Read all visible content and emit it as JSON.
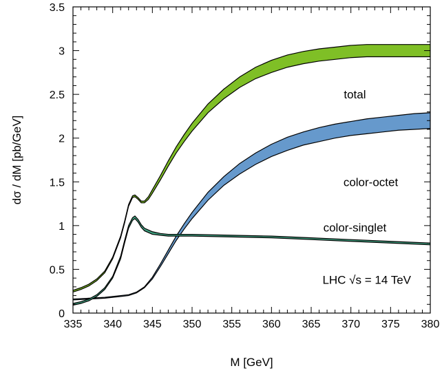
{
  "chart_data": {
    "type": "area",
    "xlabel": "M [GeV]",
    "ylabel": "dσ / dM [pb/GeV]",
    "xlim": [
      335,
      380
    ],
    "ylim": [
      0,
      3.5
    ],
    "xticks": [
      335,
      340,
      345,
      350,
      355,
      360,
      365,
      370,
      375,
      380
    ],
    "yticks": [
      0,
      0.5,
      1,
      1.5,
      2,
      2.5,
      3,
      3.5
    ],
    "ytick_labels": [
      "0",
      "0.5",
      "1",
      "1.5",
      "2",
      "2.5",
      "3",
      "3.5"
    ],
    "grid": false,
    "series": [
      {
        "name": "total",
        "color": "#7fbf26",
        "x": [
          335,
          336,
          337,
          338,
          339,
          340,
          341,
          341.5,
          342,
          342.5,
          342.8,
          343.2,
          343.6,
          344,
          344.5,
          345,
          346,
          347,
          348,
          349,
          350,
          352,
          354,
          356,
          358,
          360,
          362,
          364,
          366,
          368,
          370,
          372,
          374,
          376,
          378,
          380
        ],
        "lower": [
          0.24,
          0.27,
          0.31,
          0.37,
          0.46,
          0.62,
          0.86,
          1.03,
          1.22,
          1.32,
          1.33,
          1.3,
          1.26,
          1.26,
          1.3,
          1.37,
          1.52,
          1.68,
          1.83,
          1.96,
          2.08,
          2.29,
          2.45,
          2.58,
          2.68,
          2.75,
          2.81,
          2.85,
          2.88,
          2.9,
          2.92,
          2.93,
          2.93,
          2.93,
          2.93,
          2.93
        ],
        "upper": [
          0.26,
          0.29,
          0.33,
          0.39,
          0.48,
          0.64,
          0.88,
          1.05,
          1.24,
          1.34,
          1.35,
          1.32,
          1.28,
          1.28,
          1.33,
          1.41,
          1.57,
          1.74,
          1.9,
          2.04,
          2.17,
          2.39,
          2.56,
          2.7,
          2.81,
          2.89,
          2.95,
          2.99,
          3.02,
          3.04,
          3.06,
          3.07,
          3.07,
          3.07,
          3.07,
          3.07
        ]
      },
      {
        "name": "color-octet",
        "color": "#6699cc",
        "x": [
          335,
          337,
          339,
          341,
          342,
          343,
          344,
          345,
          346,
          347,
          348,
          349,
          350,
          352,
          354,
          356,
          358,
          360,
          362,
          364,
          366,
          368,
          370,
          372,
          374,
          376,
          378,
          380
        ],
        "lower": [
          0.15,
          0.16,
          0.17,
          0.19,
          0.2,
          0.23,
          0.29,
          0.39,
          0.53,
          0.68,
          0.83,
          0.96,
          1.08,
          1.29,
          1.46,
          1.59,
          1.7,
          1.79,
          1.86,
          1.92,
          1.96,
          2.0,
          2.03,
          2.05,
          2.07,
          2.09,
          2.1,
          2.11
        ],
        "upper": [
          0.16,
          0.17,
          0.18,
          0.2,
          0.21,
          0.24,
          0.3,
          0.41,
          0.56,
          0.72,
          0.88,
          1.02,
          1.15,
          1.38,
          1.56,
          1.71,
          1.83,
          1.93,
          2.01,
          2.07,
          2.12,
          2.16,
          2.19,
          2.22,
          2.24,
          2.26,
          2.28,
          2.29
        ]
      },
      {
        "name": "color-singlet",
        "color": "#40a080",
        "x": [
          335,
          336,
          337,
          338,
          339,
          340,
          341,
          341.5,
          342,
          342.5,
          342.8,
          343.2,
          343.6,
          344,
          345,
          346,
          347,
          348,
          350,
          355,
          360,
          365,
          370,
          375,
          380
        ],
        "lower": [
          0.09,
          0.11,
          0.14,
          0.19,
          0.27,
          0.4,
          0.62,
          0.8,
          0.97,
          1.06,
          1.08,
          1.04,
          0.98,
          0.94,
          0.9,
          0.89,
          0.88,
          0.88,
          0.88,
          0.87,
          0.86,
          0.84,
          0.82,
          0.8,
          0.78
        ],
        "upper": [
          0.11,
          0.13,
          0.16,
          0.21,
          0.29,
          0.42,
          0.65,
          0.83,
          1.0,
          1.09,
          1.11,
          1.07,
          1.01,
          0.97,
          0.93,
          0.91,
          0.9,
          0.9,
          0.9,
          0.89,
          0.88,
          0.86,
          0.84,
          0.82,
          0.8
        ]
      }
    ],
    "annotations": [
      {
        "text": "total",
        "x": 370.5,
        "y": 2.5
      },
      {
        "text": "color-octet",
        "x": 372.5,
        "y": 1.5
      },
      {
        "text": "color-singlet",
        "x": 370.5,
        "y": 0.98
      },
      {
        "text": "LHC ",
        "x": 372,
        "y": 0.38,
        "math": "√s = 14 TeV"
      }
    ]
  }
}
